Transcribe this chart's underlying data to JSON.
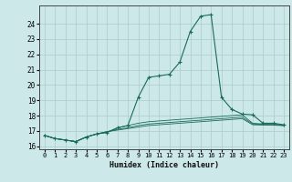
{
  "xlabel": "Humidex (Indice chaleur)",
  "xlim": [
    -0.5,
    23.5
  ],
  "ylim": [
    15.8,
    25.2
  ],
  "yticks": [
    16,
    17,
    18,
    19,
    20,
    21,
    22,
    23,
    24
  ],
  "xticks": [
    0,
    1,
    2,
    3,
    4,
    5,
    6,
    7,
    8,
    9,
    10,
    11,
    12,
    13,
    14,
    15,
    16,
    17,
    18,
    19,
    20,
    21,
    22,
    23
  ],
  "bg_color": "#cce8e8",
  "grid_color": "#aacccc",
  "line_color": "#1a6b5a",
  "series": [
    {
      "x": [
        0,
        1,
        2,
        3,
        4,
        5,
        6,
        7,
        8,
        9,
        10,
        11,
        12,
        13,
        14,
        15,
        16,
        17,
        18,
        19,
        20,
        21,
        22,
        23
      ],
      "y": [
        16.7,
        16.5,
        16.4,
        16.3,
        16.6,
        16.8,
        16.9,
        17.2,
        17.35,
        19.2,
        20.5,
        20.6,
        20.7,
        21.5,
        23.5,
        24.5,
        24.6,
        19.2,
        18.4,
        18.1,
        18.05,
        17.5,
        17.5,
        17.4
      ],
      "marker": true
    },
    {
      "x": [
        0,
        1,
        2,
        3,
        4,
        5,
        6,
        7,
        8,
        9,
        10,
        11,
        12,
        13,
        14,
        15,
        16,
        17,
        18,
        19,
        20,
        21,
        22,
        23
      ],
      "y": [
        16.7,
        16.5,
        16.4,
        16.3,
        16.6,
        16.8,
        16.9,
        17.2,
        17.35,
        17.5,
        17.6,
        17.65,
        17.7,
        17.75,
        17.8,
        17.85,
        17.9,
        17.95,
        18.0,
        18.05,
        17.5,
        17.45,
        17.45,
        17.35
      ],
      "marker": false
    },
    {
      "x": [
        0,
        1,
        2,
        3,
        4,
        5,
        6,
        7,
        8,
        9,
        10,
        11,
        12,
        13,
        14,
        15,
        16,
        17,
        18,
        19,
        20,
        21,
        22,
        23
      ],
      "y": [
        16.7,
        16.5,
        16.4,
        16.3,
        16.6,
        16.8,
        16.95,
        17.1,
        17.2,
        17.35,
        17.45,
        17.5,
        17.55,
        17.6,
        17.65,
        17.7,
        17.75,
        17.8,
        17.85,
        17.9,
        17.45,
        17.42,
        17.4,
        17.35
      ],
      "marker": false
    },
    {
      "x": [
        0,
        1,
        2,
        3,
        4,
        5,
        6,
        7,
        8,
        9,
        10,
        11,
        12,
        13,
        14,
        15,
        16,
        17,
        18,
        19,
        20,
        21,
        22,
        23
      ],
      "y": [
        16.7,
        16.5,
        16.4,
        16.3,
        16.6,
        16.8,
        16.95,
        17.05,
        17.15,
        17.25,
        17.35,
        17.4,
        17.45,
        17.5,
        17.55,
        17.6,
        17.65,
        17.7,
        17.75,
        17.8,
        17.4,
        17.38,
        17.37,
        17.35
      ],
      "marker": false
    }
  ]
}
